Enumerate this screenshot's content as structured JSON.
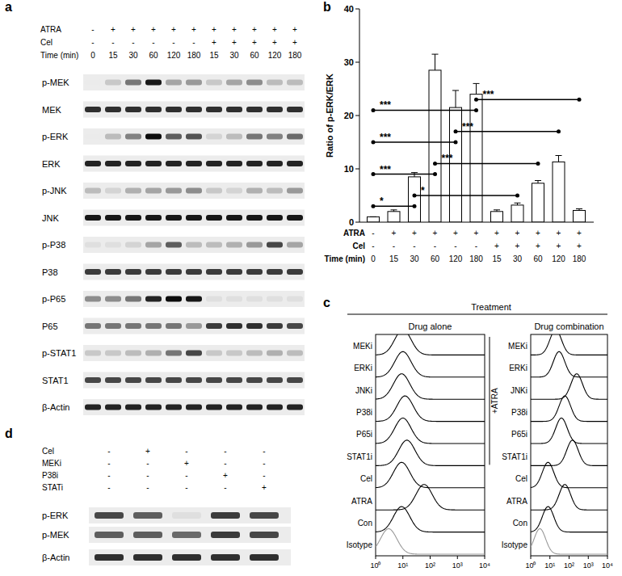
{
  "panel_a": {
    "label": "a",
    "rows": [
      {
        "label": "ATRA",
        "values": [
          "-",
          "+",
          "+",
          "+",
          "+",
          "+",
          "+",
          "+",
          "+",
          "+",
          "+"
        ]
      },
      {
        "label": "Cel",
        "values": [
          "-",
          "-",
          "-",
          "-",
          "-",
          "-",
          "+",
          "+",
          "+",
          "+",
          "+"
        ]
      },
      {
        "label": "Time (min)",
        "values": [
          "0",
          "15",
          "30",
          "60",
          "120",
          "180",
          "15",
          "30",
          "60",
          "120",
          "180"
        ]
      }
    ],
    "blots": [
      {
        "label": "p-MEK",
        "intensities": [
          0.0,
          0.15,
          0.5,
          0.9,
          0.3,
          0.35,
          0.15,
          0.3,
          0.4,
          0.2,
          0.2
        ]
      },
      {
        "label": "MEK",
        "intensities": [
          0.8,
          0.8,
          0.8,
          0.8,
          0.8,
          0.8,
          0.8,
          0.8,
          0.8,
          0.8,
          0.8
        ]
      },
      {
        "label": "p-ERK",
        "intensities": [
          0.0,
          0.2,
          0.45,
          0.95,
          0.6,
          0.65,
          0.1,
          0.2,
          0.5,
          0.45,
          0.55
        ]
      },
      {
        "label": "ERK",
        "intensities": [
          0.85,
          0.85,
          0.85,
          0.85,
          0.85,
          0.85,
          0.85,
          0.85,
          0.85,
          0.85,
          0.85
        ]
      },
      {
        "label": "p-JNK",
        "intensities": [
          0.2,
          0.1,
          0.25,
          0.3,
          0.35,
          0.4,
          0.15,
          0.1,
          0.25,
          0.2,
          0.35
        ]
      },
      {
        "label": "JNK",
        "intensities": [
          0.9,
          0.9,
          0.9,
          0.9,
          0.9,
          0.9,
          0.9,
          0.9,
          0.9,
          0.9,
          0.9
        ]
      },
      {
        "label": "p-P38",
        "intensities": [
          0.05,
          0.05,
          0.1,
          0.3,
          0.6,
          0.2,
          0.2,
          0.25,
          0.35,
          0.7,
          0.3
        ]
      },
      {
        "label": "P38",
        "intensities": [
          0.75,
          0.75,
          0.75,
          0.75,
          0.75,
          0.75,
          0.75,
          0.75,
          0.75,
          0.75,
          0.75
        ]
      },
      {
        "label": "p-P65",
        "intensities": [
          0.4,
          0.4,
          0.5,
          0.85,
          0.95,
          0.9,
          0.05,
          0.05,
          0.05,
          0.05,
          0.05
        ]
      },
      {
        "label": "P65",
        "intensities": [
          0.5,
          0.5,
          0.5,
          0.5,
          0.5,
          0.35,
          0.75,
          0.8,
          0.8,
          0.75,
          0.7
        ]
      },
      {
        "label": "p-STAT1",
        "intensities": [
          0.15,
          0.15,
          0.2,
          0.25,
          0.5,
          0.7,
          0.15,
          0.15,
          0.2,
          0.25,
          0.2
        ]
      },
      {
        "label": "STAT1",
        "intensities": [
          0.7,
          0.7,
          0.7,
          0.7,
          0.7,
          0.7,
          0.7,
          0.7,
          0.7,
          0.7,
          0.7
        ]
      },
      {
        "label": "β-Actin",
        "intensities": [
          0.85,
          0.85,
          0.85,
          0.85,
          0.85,
          0.85,
          0.85,
          0.85,
          0.85,
          0.85,
          0.85
        ]
      }
    ]
  },
  "chart_data": {
    "type": "bar",
    "label": "b",
    "y_label": "Ratio of p-ERK/ERK",
    "categories": [
      "0",
      "15",
      "30",
      "60",
      "120",
      "180",
      "15",
      "30",
      "60",
      "120",
      "180"
    ],
    "category_label": "Time (min)",
    "condition_rows": [
      {
        "label": "ATRA",
        "values": [
          "-",
          "+",
          "+",
          "+",
          "+",
          "+",
          "+",
          "+",
          "+",
          "+",
          "+"
        ]
      },
      {
        "label": "Cel",
        "values": [
          "-",
          "-",
          "-",
          "-",
          "-",
          "-",
          "+",
          "+",
          "+",
          "+",
          "+"
        ]
      }
    ],
    "values": [
      1,
      2,
      8.5,
      28.5,
      21.5,
      24,
      2,
      3.2,
      7.3,
      11.3,
      2.2
    ],
    "errors": [
      0,
      0.3,
      0.8,
      3,
      3.2,
      2,
      0.3,
      0.4,
      0.5,
      1.2,
      0.3
    ],
    "color": "#ffffff",
    "ylim": [
      0,
      40
    ],
    "yticks": [
      0,
      10,
      20,
      30,
      40
    ],
    "comparisons": [
      {
        "from": 0,
        "to": 5,
        "y": 21,
        "label": "***"
      },
      {
        "from": 0,
        "to": 4,
        "y": 15,
        "label": "***"
      },
      {
        "from": 0,
        "to": 3,
        "y": 9,
        "label": "***"
      },
      {
        "from": 0,
        "to": 2,
        "y": 3,
        "label": "*"
      },
      {
        "from": 5,
        "to": 10,
        "y": 23,
        "label": "***"
      },
      {
        "from": 4,
        "to": 9,
        "y": 17,
        "label": "***"
      },
      {
        "from": 3,
        "to": 8,
        "y": 11,
        "label": "***"
      },
      {
        "from": 2,
        "to": 7,
        "y": 5,
        "label": "*"
      }
    ]
  },
  "panel_c": {
    "label": "c",
    "header": "Treatment",
    "log": "x",
    "xlim": [
      1,
      10000
    ],
    "xticks": [
      {
        "value": 1,
        "label": "10⁰"
      },
      {
        "value": 10,
        "label": "10¹"
      },
      {
        "value": 100,
        "label": "10²"
      },
      {
        "value": 1000,
        "label": "10³"
      },
      {
        "value": 10000,
        "label": "10⁴"
      }
    ],
    "columns": [
      {
        "title": "Drug alone",
        "histograms": [
          {
            "label": "MEKi",
            "peak": 10,
            "color": "#000000"
          },
          {
            "label": "ERKi",
            "peak": 10,
            "color": "#000000"
          },
          {
            "label": "JNKi",
            "peak": 9,
            "color": "#000000"
          },
          {
            "label": "P38i",
            "peak": 12,
            "color": "#000000"
          },
          {
            "label": "P65i",
            "peak": 10,
            "color": "#000000"
          },
          {
            "label": "STAT1i",
            "peak": 14,
            "color": "#000000"
          },
          {
            "label": "Cel",
            "peak": 9,
            "color": "#000000"
          },
          {
            "label": "ATRA",
            "peak": 60,
            "color": "#000000"
          },
          {
            "label": "Con",
            "peak": 9,
            "color": "#000000"
          },
          {
            "label": "Isotype",
            "peak": 3,
            "color": "#999999"
          }
        ]
      },
      {
        "title": "Drug combination",
        "group_label": "+ATRA",
        "group_rows": [
          0,
          5
        ],
        "histograms": [
          {
            "label": "MEKi",
            "peak": 20,
            "color": "#000000"
          },
          {
            "label": "ERKi",
            "peak": 30,
            "color": "#000000"
          },
          {
            "label": "JNKi",
            "peak": 250,
            "color": "#000000"
          },
          {
            "label": "P38i",
            "peak": 60,
            "color": "#000000"
          },
          {
            "label": "P65i",
            "peak": 40,
            "color": "#000000"
          },
          {
            "label": "STAT1i",
            "peak": 150,
            "color": "#000000"
          },
          {
            "label": "Cel",
            "peak": 8,
            "color": "#000000"
          },
          {
            "label": "ATRA",
            "peak": 60,
            "color": "#000000"
          },
          {
            "label": "Con",
            "peak": 8,
            "color": "#000000"
          },
          {
            "label": "Isotype",
            "peak": 3,
            "color": "#999999"
          }
        ]
      }
    ]
  },
  "panel_d": {
    "label": "d",
    "rows": [
      {
        "label": "Cel",
        "values": [
          "-",
          "+",
          "-",
          "-",
          "-"
        ]
      },
      {
        "label": "MEKi",
        "values": [
          "-",
          "-",
          "+",
          "-",
          "-"
        ]
      },
      {
        "label": "P38i",
        "values": [
          "-",
          "-",
          "-",
          "+",
          "-"
        ]
      },
      {
        "label": "STATi",
        "values": [
          "-",
          "-",
          "-",
          "-",
          "+"
        ]
      }
    ],
    "blots": [
      {
        "label": "p-ERK",
        "intensities": [
          0.7,
          0.6,
          0.05,
          0.75,
          0.7
        ]
      },
      {
        "label": "p-MEK",
        "intensities": [
          0.6,
          0.6,
          0.55,
          0.75,
          0.7
        ]
      },
      {
        "label": "β-Actin",
        "intensities": [
          0.8,
          0.8,
          0.8,
          0.8,
          0.8
        ]
      }
    ]
  }
}
